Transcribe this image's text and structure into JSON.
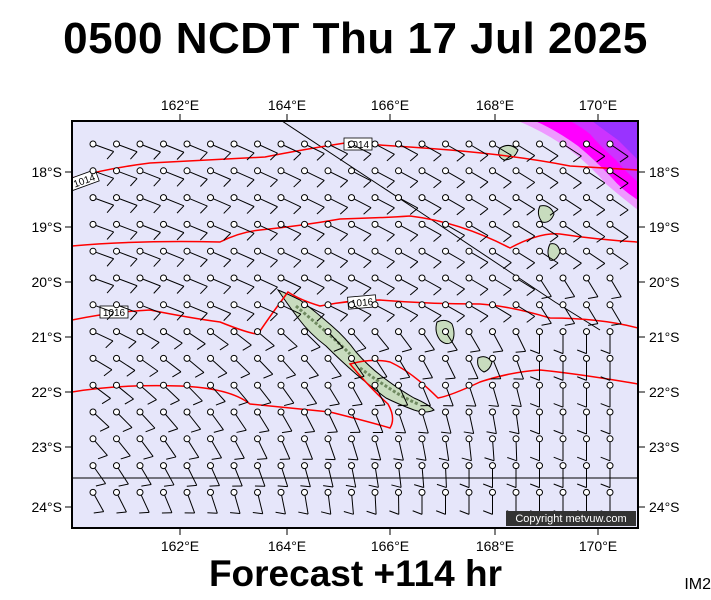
{
  "header": {
    "title": "0500 NCDT Thu 17 Jul 2025"
  },
  "footer": {
    "forecast_label": "Forecast +114 hr",
    "corner_code": "IM2"
  },
  "map": {
    "background_color": "#e6e6fa",
    "precip_colors": [
      "#ff00ff",
      "#cc33ff",
      "#9933ff",
      "#ee99ff"
    ],
    "isobar_color": "#ff0000",
    "lon_labels": [
      "162°E",
      "164°E",
      "166°E",
      "168°E",
      "170°E"
    ],
    "lat_labels": [
      "18°S",
      "19°S",
      "20°S",
      "21°S",
      "22°S",
      "23°S",
      "24°S"
    ],
    "isobar_labels": [
      "1014",
      "1014",
      "1016",
      "1016"
    ],
    "copyright": "Copyright metvuw.com"
  }
}
